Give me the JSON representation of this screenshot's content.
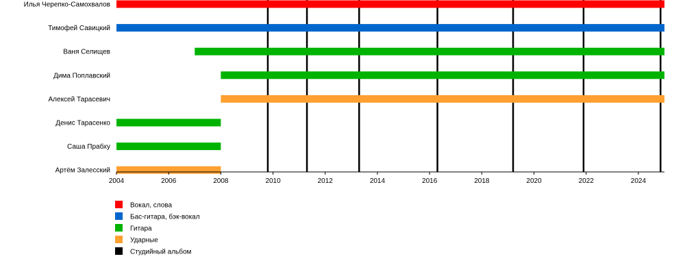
{
  "chart_data": {
    "type": "timeline",
    "title": "",
    "xlabel": "",
    "ylabel": "",
    "xlim": [
      2004,
      2025
    ],
    "x_ticks": [
      "2004",
      "2006",
      "2008",
      "2010",
      "2012",
      "2014",
      "2016",
      "2018",
      "2020",
      "2022",
      "2024"
    ],
    "grid": false,
    "legend_position": "bottom-left",
    "members": [
      {
        "name": "Илья Черепко-Самохвалов",
        "role": "vocals",
        "start": 2004,
        "end": 2025
      },
      {
        "name": "Тимофей Савицкий",
        "role": "bass",
        "start": 2004,
        "end": 2025
      },
      {
        "name": "Ваня Селищев",
        "role": "guitar",
        "start": 2007,
        "end": 2025
      },
      {
        "name": "Дима Поплавский",
        "role": "guitar",
        "start": 2008,
        "end": 2025
      },
      {
        "name": "Алексей Тарасевич",
        "role": "drums",
        "start": 2008,
        "end": 2025
      },
      {
        "name": "Денис Тарасенко",
        "role": "guitar",
        "start": 2004,
        "end": 2008
      },
      {
        "name": "Саша Прабху",
        "role": "guitar",
        "start": 2004,
        "end": 2008
      },
      {
        "name": "Артём Залесский",
        "role": "drums",
        "start": 2004,
        "end": 2008
      }
    ],
    "albums": [
      2009.8,
      2011.3,
      2013.3,
      2016.3,
      2019.2,
      2021.9,
      2024.85
    ],
    "legend": [
      {
        "key": "vocals",
        "label": "Вокал, слова",
        "color": "#ff0000"
      },
      {
        "key": "bass",
        "label": "Бас-гитара, бэк-вокал",
        "color": "#0066cc"
      },
      {
        "key": "guitar",
        "label": "Гитара",
        "color": "#00b300"
      },
      {
        "key": "drums",
        "label": "Ударные",
        "color": "#ffa030"
      },
      {
        "key": "album",
        "label": "Студийный альбом",
        "color": "#000000"
      }
    ]
  }
}
